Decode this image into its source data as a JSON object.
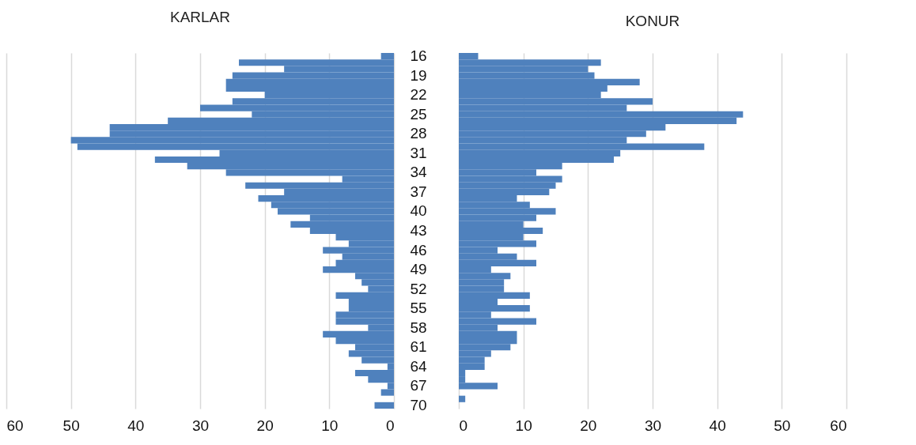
{
  "chart_data": [
    {
      "type": "bar",
      "orientation": "horizontal",
      "title": "KARLAR",
      "categories": [
        "16",
        null,
        null,
        "19",
        null,
        null,
        "22",
        null,
        null,
        "25",
        null,
        null,
        "28",
        null,
        null,
        "31",
        null,
        null,
        "34",
        null,
        null,
        "37",
        null,
        null,
        "40",
        null,
        null,
        "43",
        null,
        null,
        "46",
        null,
        null,
        "49",
        null,
        null,
        "52",
        null,
        null,
        "55",
        null,
        null,
        "58",
        null,
        null,
        "61",
        null,
        null,
        "64",
        null,
        null,
        "67",
        null,
        null,
        "70"
      ],
      "values": [
        2,
        24,
        17,
        25,
        26,
        26,
        20,
        25,
        30,
        22,
        35,
        44,
        44,
        50,
        49,
        27,
        37,
        32,
        26,
        8,
        23,
        17,
        21,
        19,
        18,
        13,
        16,
        13,
        9,
        7,
        11,
        8,
        9,
        11,
        6,
        5,
        4,
        9,
        7,
        7,
        9,
        9,
        4,
        11,
        9,
        6,
        7,
        5,
        1,
        6,
        4,
        1,
        2,
        0,
        3
      ],
      "color": "#4f81bd",
      "xlim": [
        60,
        0
      ],
      "xticks": [
        60,
        50,
        40,
        30,
        20,
        10,
        0
      ],
      "grid": "x"
    },
    {
      "type": "bar",
      "orientation": "horizontal",
      "title": "KONUR",
      "categories": [
        "16",
        null,
        null,
        "19",
        null,
        null,
        "22",
        null,
        null,
        "25",
        null,
        null,
        "28",
        null,
        null,
        "31",
        null,
        null,
        "34",
        null,
        null,
        "37",
        null,
        null,
        "40",
        null,
        null,
        "43",
        null,
        null,
        "46",
        null,
        null,
        "49",
        null,
        null,
        "52",
        null,
        null,
        "55",
        null,
        null,
        "58",
        null,
        null,
        "61",
        null,
        null,
        "64",
        null,
        null,
        "67",
        null,
        null,
        "70"
      ],
      "values": [
        3,
        22,
        20,
        21,
        28,
        23,
        22,
        30,
        26,
        44,
        43,
        32,
        29,
        26,
        38,
        25,
        24,
        16,
        12,
        16,
        15,
        14,
        9,
        11,
        15,
        12,
        10,
        13,
        10,
        12,
        6,
        9,
        12,
        5,
        8,
        7,
        7,
        11,
        6,
        11,
        5,
        12,
        6,
        9,
        9,
        8,
        5,
        4,
        4,
        1,
        1,
        6,
        0,
        1,
        0
      ],
      "color": "#4f81bd",
      "xlim": [
        0,
        60
      ],
      "xticks": [
        0,
        10,
        20,
        30,
        40,
        50,
        60
      ],
      "grid": "x",
      "tick_labels": "x"
    }
  ]
}
